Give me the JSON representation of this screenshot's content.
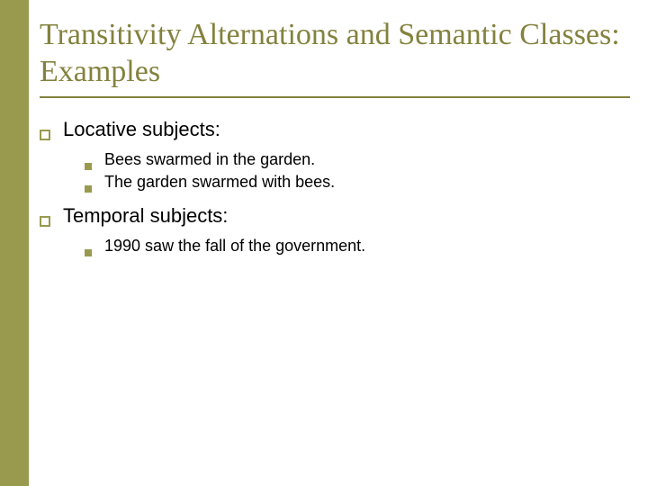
{
  "colors": {
    "accent": "#9a9a4f",
    "title": "#83823e",
    "text": "#000000",
    "background": "#ffffff"
  },
  "title": "Transitivity Alternations and Semantic Classes: Examples",
  "sections": [
    {
      "label": "Locative subjects:",
      "items": [
        "Bees swarmed in the garden.",
        "The garden swarmed with bees."
      ]
    },
    {
      "label": "Temporal subjects:",
      "items": [
        "1990 saw the fall of the government."
      ]
    }
  ]
}
